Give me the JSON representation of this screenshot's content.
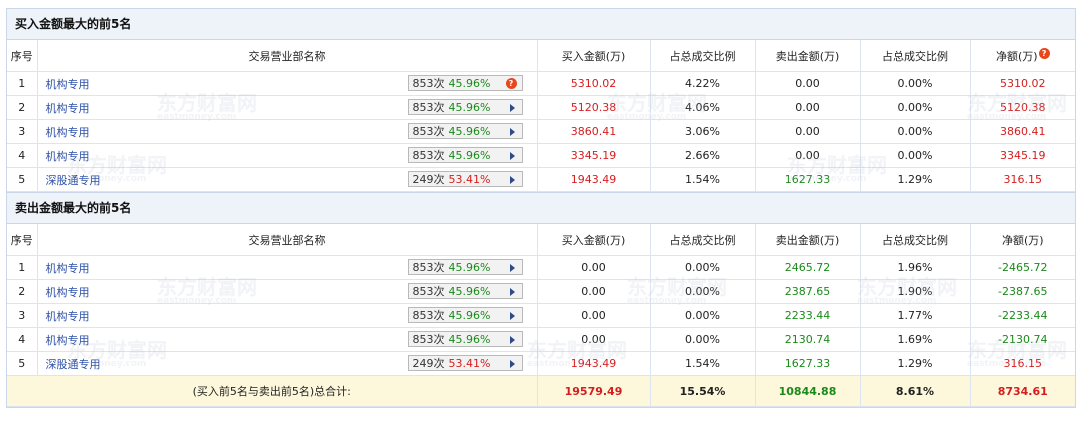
{
  "columns": [
    "序号",
    "交易营业部名称",
    "买入金额(万)",
    "占总成交比例",
    "卖出金额(万)",
    "占总成交比例",
    "净额(万)"
  ],
  "buy_section": {
    "title": "买入金额最大的前5名",
    "rows": [
      {
        "idx": "1",
        "name": "机构专用",
        "count": "853次",
        "rate": "45.96%",
        "buy": "5310.02",
        "buy_pct": "4.22%",
        "sell": "0.00",
        "sell_pct": "0.00%",
        "net": "5310.02"
      },
      {
        "idx": "2",
        "name": "机构专用",
        "count": "853次",
        "rate": "45.96%",
        "buy": "5120.38",
        "buy_pct": "4.06%",
        "sell": "0.00",
        "sell_pct": "0.00%",
        "net": "5120.38"
      },
      {
        "idx": "3",
        "name": "机构专用",
        "count": "853次",
        "rate": "45.96%",
        "buy": "3860.41",
        "buy_pct": "3.06%",
        "sell": "0.00",
        "sell_pct": "0.00%",
        "net": "3860.41"
      },
      {
        "idx": "4",
        "name": "机构专用",
        "count": "853次",
        "rate": "45.96%",
        "buy": "3345.19",
        "buy_pct": "2.66%",
        "sell": "0.00",
        "sell_pct": "0.00%",
        "net": "3345.19"
      },
      {
        "idx": "5",
        "name": "深股通专用",
        "count": "249次",
        "rate": "53.41%",
        "buy": "1943.49",
        "buy_pct": "1.54%",
        "sell": "1627.33",
        "sell_pct": "1.29%",
        "net": "316.15"
      }
    ]
  },
  "sell_section": {
    "title": "卖出金额最大的前5名",
    "rows": [
      {
        "idx": "1",
        "name": "机构专用",
        "count": "853次",
        "rate": "45.96%",
        "buy": "0.00",
        "buy_pct": "0.00%",
        "sell": "2465.72",
        "sell_pct": "1.96%",
        "net": "-2465.72"
      },
      {
        "idx": "2",
        "name": "机构专用",
        "count": "853次",
        "rate": "45.96%",
        "buy": "0.00",
        "buy_pct": "0.00%",
        "sell": "2387.65",
        "sell_pct": "1.90%",
        "net": "-2387.65"
      },
      {
        "idx": "3",
        "name": "机构专用",
        "count": "853次",
        "rate": "45.96%",
        "buy": "0.00",
        "buy_pct": "0.00%",
        "sell": "2233.44",
        "sell_pct": "1.77%",
        "net": "-2233.44"
      },
      {
        "idx": "4",
        "name": "机构专用",
        "count": "853次",
        "rate": "45.96%",
        "buy": "0.00",
        "buy_pct": "0.00%",
        "sell": "2130.74",
        "sell_pct": "1.69%",
        "net": "-2130.74"
      },
      {
        "idx": "5",
        "name": "深股通专用",
        "count": "249次",
        "rate": "53.41%",
        "buy": "1943.49",
        "buy_pct": "1.54%",
        "sell": "1627.33",
        "sell_pct": "1.29%",
        "net": "316.15"
      }
    ]
  },
  "total": {
    "label": "(买入前5名与卖出前5名)总合计:",
    "buy": "19579.49",
    "buy_pct": "15.54%",
    "sell": "10844.88",
    "sell_pct": "8.61%",
    "net": "8734.61"
  },
  "help_glyph": "?",
  "watermark": {
    "cn": "东方财富网",
    "en": "eastmoney.com"
  },
  "colors": {
    "buy": "#d61d1d",
    "sell": "#1a8a1a",
    "header_bg": "#eef3fa",
    "total_bg": "#fdf7dc",
    "link": "#2b4ea6"
  }
}
